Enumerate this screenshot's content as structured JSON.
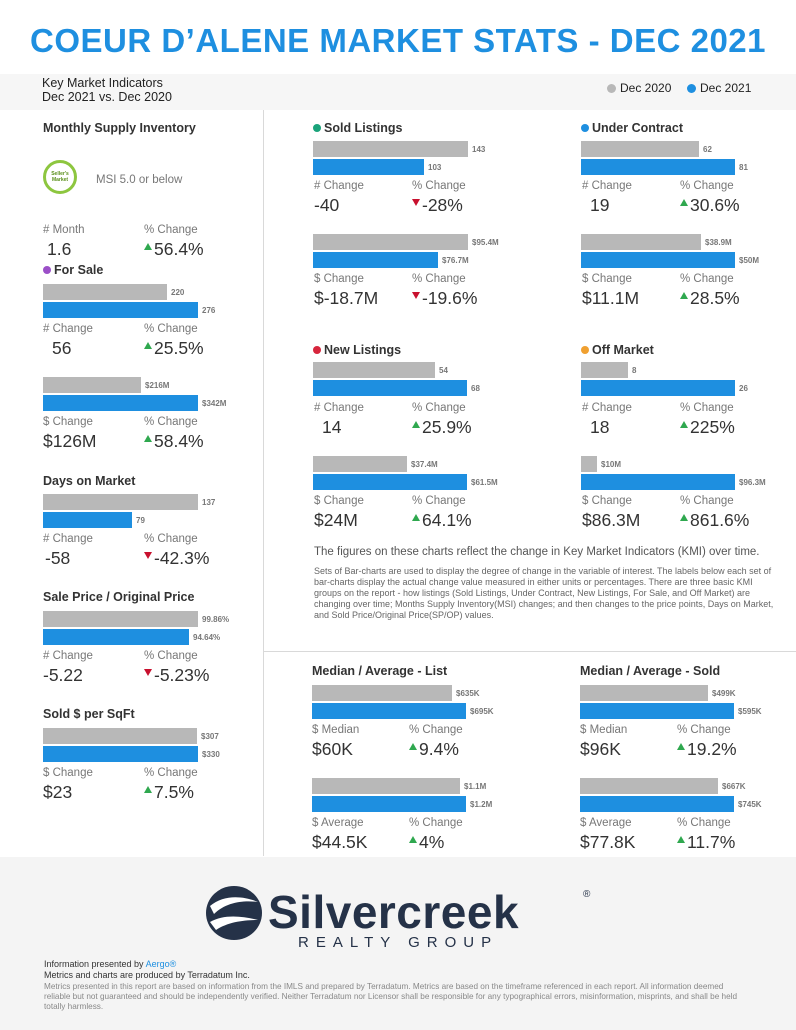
{
  "title": "COEUR D’ALENE MARKET STATS - DEC 2021",
  "kmi_line1": "Key Market Indicators",
  "kmi_line2": "Dec 2021 vs. Dec 2020",
  "legend": [
    {
      "label": "Dec 2020",
      "color": "#b8b8b8"
    },
    {
      "label": "Dec 2021",
      "color": "#1e8fe0"
    }
  ],
  "left": {
    "msi": {
      "title": "Monthly Supply Inventory",
      "badge": "Seller's Market",
      "msi_note": "MSI 5.0 or below",
      "label_a": "# Month",
      "value_a": "1.6",
      "label_b": "% Change",
      "value_b": "56.4%"
    },
    "for_sale": {
      "title": "For Sale",
      "dot_color": "#9b4fc8",
      "count_2020": "220",
      "count_2021": "276",
      "label_a": "# Change",
      "value_a": "56",
      "label_b": "% Change",
      "value_b": "25.5%",
      "dollar_2020": "$216M",
      "dollar_2021": "$342M",
      "label_c": "$ Change",
      "value_c": "$126M",
      "label_d": "% Change",
      "value_d": "58.4%"
    },
    "dom": {
      "title": "Days on Market",
      "v2020": "137",
      "v2021": "79",
      "label_a": "# Change",
      "value_a": "-58",
      "label_b": "% Change",
      "value_b": "-42.3%"
    },
    "spop": {
      "title": "Sale Price / Original Price",
      "v2020": "99.86%",
      "v2021": "94.64%",
      "label_a": "# Change",
      "value_a": "-5.22",
      "label_b": "% Change",
      "value_b": "-5.23%"
    },
    "sqft": {
      "title": "Sold $ per SqFt",
      "v2020": "$307",
      "v2021": "$330",
      "label_a": "$ Change",
      "value_a": "$23",
      "label_b": "% Change",
      "value_b": "7.5%"
    }
  },
  "sold": {
    "title": "Sold Listings",
    "dot_color": "#1aa37a",
    "count_2020": "143",
    "count_2021": "103",
    "label_a": "# Change",
    "value_a": "-40",
    "label_b": "% Change",
    "value_b": "-28%",
    "dollar_2020": "$95.4M",
    "dollar_2021": "$76.7M",
    "label_c": "$ Change",
    "value_c": "$-18.7M",
    "label_d": "% Change",
    "value_d": "-19.6%"
  },
  "under": {
    "title": "Under Contract",
    "dot_color": "#1e8fe0",
    "count_2020": "62",
    "count_2021": "81",
    "label_a": "# Change",
    "value_a": "19",
    "label_b": "% Change",
    "value_b": "30.6%",
    "dollar_2020": "$38.9M",
    "dollar_2021": "$50M",
    "label_c": "$ Change",
    "value_c": "$11.1M",
    "label_d": "% Change",
    "value_d": "28.5%"
  },
  "new": {
    "title": "New Listings",
    "dot_color": "#d7263d",
    "count_2020": "54",
    "count_2021": "68",
    "label_a": "# Change",
    "value_a": "14",
    "label_b": "% Change",
    "value_b": "25.9%",
    "dollar_2020": "$37.4M",
    "dollar_2021": "$61.5M",
    "label_c": "$ Change",
    "value_c": "$24M",
    "label_d": "% Change",
    "value_d": "64.1%"
  },
  "off": {
    "title": "Off Market",
    "dot_color": "#f0a030",
    "count_2020": "8",
    "count_2021": "26",
    "label_a": "# Change",
    "value_a": "18",
    "label_b": "% Change",
    "value_b": "225%",
    "dollar_2020": "$10M",
    "dollar_2021": "$96.3M",
    "label_c": "$ Change",
    "value_c": "$86.3M",
    "label_d": "% Change",
    "value_d": "861.6%"
  },
  "desc1": "The figures on these charts reflect the change in Key Market Indicators (KMI) over time.",
  "desc2": "Sets of Bar-charts are used to display the degree of change in the variable of interest. The labels below each set of bar-charts display the actual change value measured in either units or percentages. There are three basic KMI groups on the report - how listings (Sold Listings, Under Contract, New Listings, For Sale, and Off Market) are changing over time; Months Supply Inventory(MSI) changes; and then changes to the price points, Days on Market, and Sold Price/Original Price(SP/OP) values.",
  "list_ma": {
    "title": "Median / Average - List",
    "med_2020": "$635K",
    "med_2021": "$695K",
    "label_a": "$ Median",
    "value_a": "$60K",
    "label_b": "% Change",
    "value_b": "9.4%",
    "avg_2020": "$1.1M",
    "avg_2021": "$1.2M",
    "label_c": "$ Average",
    "value_c": "$44.5K",
    "label_d": "% Change",
    "value_d": "4%"
  },
  "sold_ma": {
    "title": "Median / Average - Sold",
    "med_2020": "$499K",
    "med_2021": "$595K",
    "label_a": "$ Median",
    "value_a": "$96K",
    "label_b": "% Change",
    "value_b": "19.2%",
    "avg_2020": "$667K",
    "avg_2021": "$745K",
    "label_c": "$ Average",
    "value_c": "$77.8K",
    "label_d": "% Change",
    "value_d": "11.7%"
  },
  "footer": {
    "brand": "Silvercreek",
    "reg": "®",
    "tagline": "REALTY GROUP",
    "presented_prefix": "Information presented by ",
    "presented_by": "Aergo®",
    "produced": "Metrics and charts are produced by Terradatum Inc.",
    "disclaimer": "Metrics presented in this report are based on information from the IMLS and prepared by Terradatum. Metrics are based on the timeframe referenced in each report. All information deemed reliable but not guaranteed and should be independently verified. Neither Terradatum nor Licensor shall be responsible for any typographical errors, misinformation, misprints, and shall be held totally harmless."
  }
}
